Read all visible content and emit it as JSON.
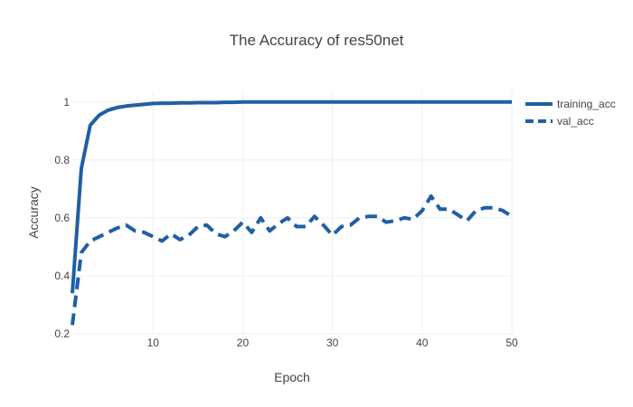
{
  "chart_data": {
    "type": "line",
    "title": "The Accuracy of res50net",
    "xlabel": "Epoch",
    "ylabel": "Accuracy",
    "xlim": [
      1,
      50
    ],
    "ylim": [
      0.2,
      1.04
    ],
    "x_ticks": [
      10,
      20,
      30,
      40,
      50
    ],
    "y_ticks": [
      0.2,
      0.4,
      0.6,
      0.8,
      1
    ],
    "y_tick_labels": [
      "0.2",
      "0.4",
      "0.6",
      "0.8",
      "1"
    ],
    "grid": true,
    "legend_position": "top-right",
    "x": [
      1,
      2,
      3,
      4,
      5,
      6,
      7,
      8,
      9,
      10,
      11,
      12,
      13,
      14,
      15,
      16,
      17,
      18,
      19,
      20,
      21,
      22,
      23,
      24,
      25,
      26,
      27,
      28,
      29,
      30,
      31,
      32,
      33,
      34,
      35,
      36,
      37,
      38,
      39,
      40,
      41,
      42,
      43,
      44,
      45,
      46,
      47,
      48,
      49,
      50
    ],
    "series": [
      {
        "name": "training_acc",
        "color": "#1f5fa5",
        "dash": "solid",
        "values": [
          0.34,
          0.77,
          0.92,
          0.955,
          0.972,
          0.981,
          0.986,
          0.989,
          0.992,
          0.995,
          0.996,
          0.996,
          0.997,
          0.997,
          0.998,
          0.998,
          0.998,
          0.999,
          0.999,
          1.0,
          1.0,
          1.0,
          1.0,
          1.0,
          1.0,
          1.0,
          1.0,
          1.0,
          1.0,
          1.0,
          1.0,
          1.0,
          1.0,
          1.0,
          1.0,
          1.0,
          1.0,
          1.0,
          1.0,
          1.0,
          1.0,
          1.0,
          1.0,
          1.0,
          1.0,
          1.0,
          1.0,
          1.0,
          1.0,
          1.0
        ]
      },
      {
        "name": "val_acc",
        "color": "#1f5fa5",
        "dash": "dash",
        "values": [
          0.23,
          0.48,
          0.52,
          0.535,
          0.55,
          0.565,
          0.575,
          0.555,
          0.55,
          0.535,
          0.52,
          0.545,
          0.525,
          0.54,
          0.57,
          0.575,
          0.545,
          0.535,
          0.555,
          0.585,
          0.55,
          0.6,
          0.555,
          0.58,
          0.6,
          0.57,
          0.57,
          0.605,
          0.575,
          0.54,
          0.57,
          0.575,
          0.6,
          0.605,
          0.605,
          0.585,
          0.59,
          0.6,
          0.595,
          0.625,
          0.675,
          0.63,
          0.63,
          0.61,
          0.59,
          0.625,
          0.635,
          0.635,
          0.625,
          0.605
        ]
      }
    ]
  }
}
